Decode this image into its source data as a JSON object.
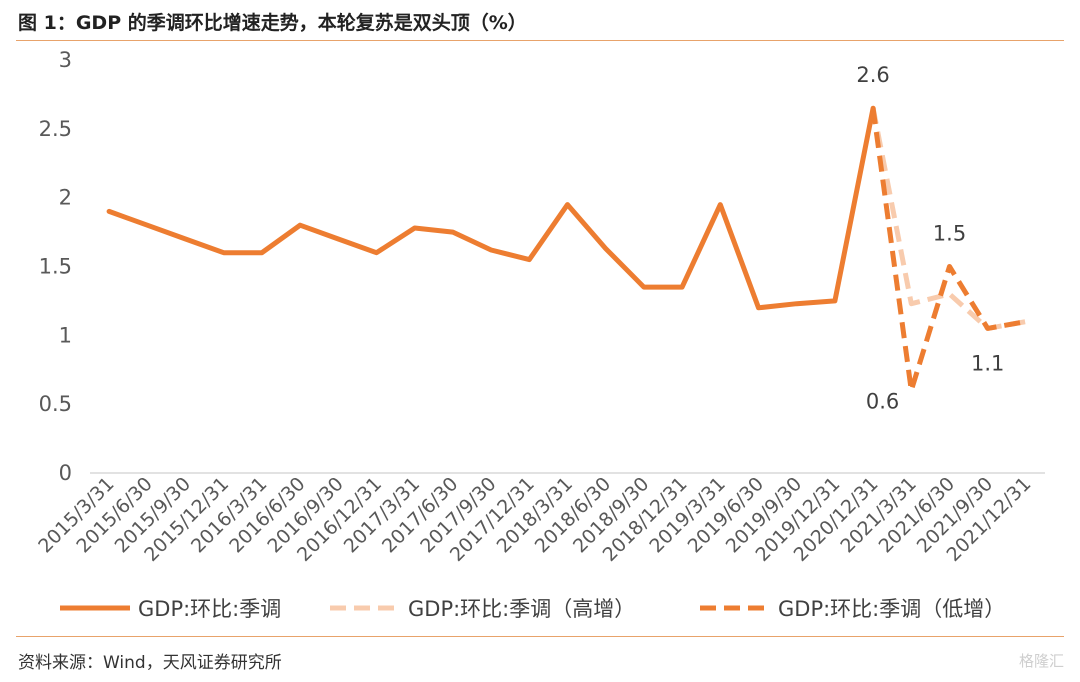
{
  "header": {
    "title": "图 1：GDP 的季调环比增速走势，本轮复苏是双头顶（%）"
  },
  "footer": {
    "source": "资料来源：Wind，天风证券研究所",
    "watermark": "格隆汇"
  },
  "chart_data": {
    "type": "line",
    "title": "图 1：GDP 的季调环比增速走势，本轮复苏是双头顶（%）",
    "xlabel": "",
    "ylabel": "",
    "ylim": [
      0,
      3
    ],
    "yticks": [
      "0",
      "0.5",
      "1",
      "1.5",
      "2",
      "2.5",
      "3"
    ],
    "grid": false,
    "legend_position": "bottom",
    "categories": [
      "2015/3/31",
      "2015/6/30",
      "2015/9/30",
      "2015/12/31",
      "2016/3/31",
      "2016/6/30",
      "2016/9/30",
      "2016/12/31",
      "2017/3/31",
      "2017/6/30",
      "2017/9/30",
      "2017/12/31",
      "2018/3/31",
      "2018/6/30",
      "2018/9/30",
      "2018/12/31",
      "2019/3/31",
      "2019/6/30",
      "2019/9/30",
      "2019/12/31",
      "2020/12/31",
      "2021/3/31",
      "2021/6/30",
      "2021/9/30",
      "2021/12/31"
    ],
    "series": [
      {
        "name": "GDP:环比:季调",
        "style": "solid",
        "color": "#ed7d31",
        "values": [
          1.9,
          1.8,
          1.7,
          1.6,
          1.6,
          1.8,
          1.7,
          1.6,
          1.78,
          1.75,
          1.62,
          1.55,
          1.95,
          1.63,
          1.35,
          1.35,
          1.95,
          1.2,
          1.23,
          1.25,
          2.65,
          null,
          null,
          null,
          null
        ]
      },
      {
        "name": "GDP:环比:季调（高增）",
        "style": "dashed",
        "color": "#f8cbad",
        "values": [
          null,
          null,
          null,
          null,
          null,
          null,
          null,
          null,
          null,
          null,
          null,
          null,
          null,
          null,
          null,
          null,
          null,
          null,
          null,
          null,
          2.65,
          1.23,
          1.3,
          1.05,
          1.1
        ]
      },
      {
        "name": "GDP:环比:季调（低增）",
        "style": "dashed",
        "color": "#ed7d31",
        "values": [
          null,
          null,
          null,
          null,
          null,
          null,
          null,
          null,
          null,
          null,
          null,
          null,
          null,
          null,
          null,
          null,
          null,
          null,
          null,
          null,
          2.65,
          0.6,
          1.5,
          1.05,
          1.1
        ]
      }
    ],
    "annotations": [
      {
        "text": "2.6",
        "category": "2020/12/31",
        "value": 2.65,
        "pos": "above"
      },
      {
        "text": "0.6",
        "category": "2021/3/31",
        "value": 0.6,
        "pos": "left"
      },
      {
        "text": "1.5",
        "category": "2021/6/30",
        "value": 1.5,
        "pos": "above"
      },
      {
        "text": "1.1",
        "category": "2021/9/30",
        "value": 1.05,
        "pos": "below"
      }
    ]
  }
}
